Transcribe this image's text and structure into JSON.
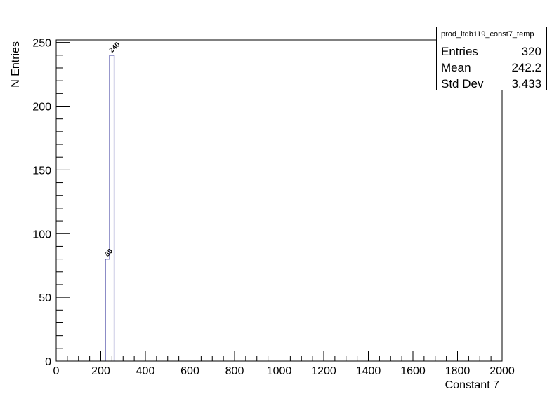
{
  "chart_data": {
    "type": "bar",
    "histogram_name": "prod_ltdb119_const7_temp",
    "xlabel": "Constant 7",
    "ylabel": "N Entries",
    "xlim": [
      0,
      2000
    ],
    "ylim": [
      0,
      252
    ],
    "x_ticks": [
      0,
      200,
      400,
      600,
      800,
      1000,
      1200,
      1400,
      1600,
      1800,
      2000
    ],
    "y_ticks": [
      0,
      50,
      100,
      150,
      200,
      250
    ],
    "bins": [
      {
        "low": 220,
        "high": 240,
        "value": 80,
        "label": "80"
      },
      {
        "low": 240,
        "high": 260,
        "value": 240,
        "label": "240"
      }
    ],
    "line_color": "#000080",
    "stats": {
      "title": "prod_ltdb119_const7_temp",
      "rows": [
        {
          "label": "Entries",
          "value": "320"
        },
        {
          "label": "Mean",
          "value": "242.2"
        },
        {
          "label": "Std Dev",
          "value": "3.433"
        }
      ]
    }
  }
}
